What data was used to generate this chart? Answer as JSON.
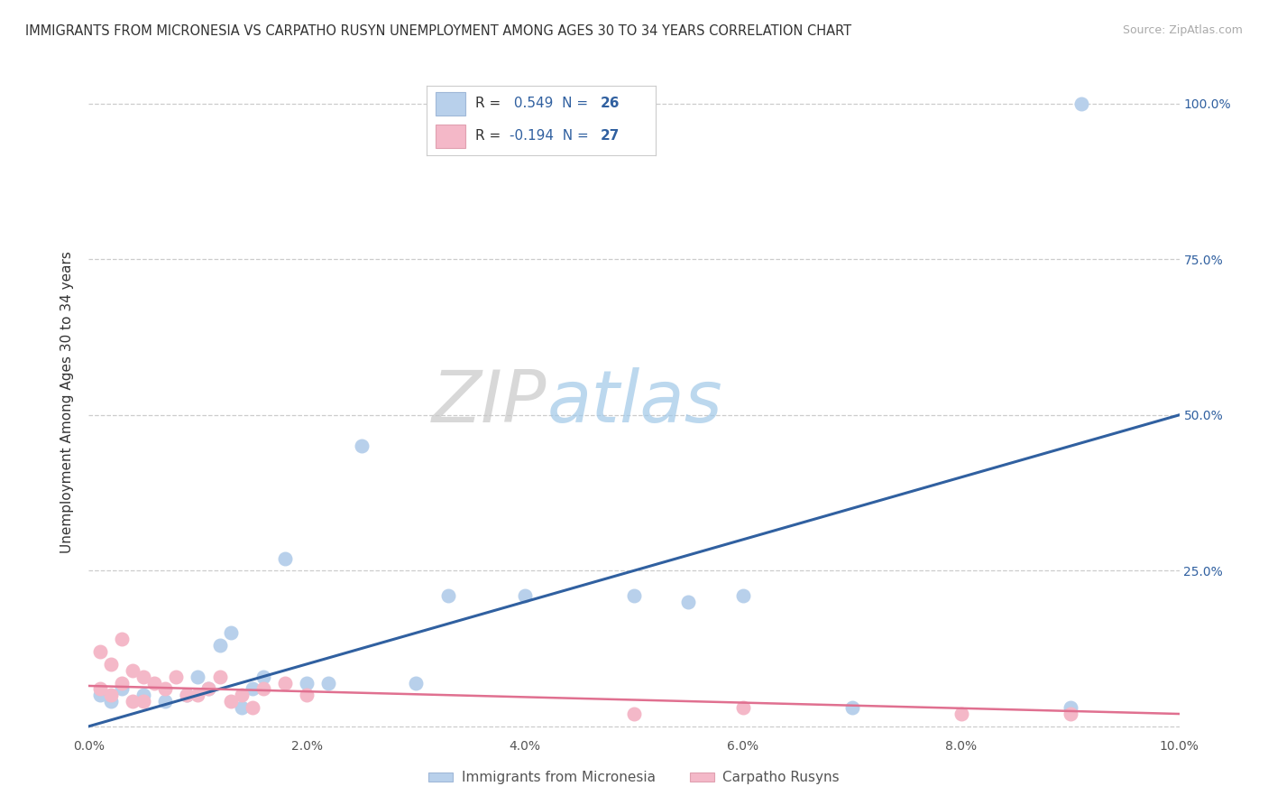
{
  "title": "IMMIGRANTS FROM MICRONESIA VS CARPATHO RUSYN UNEMPLOYMENT AMONG AGES 30 TO 34 YEARS CORRELATION CHART",
  "source": "Source: ZipAtlas.com",
  "ylabel": "Unemployment Among Ages 30 to 34 years",
  "xlim": [
    0,
    0.1
  ],
  "ylim": [
    -0.01,
    1.05
  ],
  "xticks": [
    0.0,
    0.02,
    0.04,
    0.06,
    0.08,
    0.1
  ],
  "yticks": [
    0.0,
    0.25,
    0.5,
    0.75,
    1.0
  ],
  "xtick_labels": [
    "0.0%",
    "2.0%",
    "4.0%",
    "6.0%",
    "8.0%",
    "10.0%"
  ],
  "ytick_labels_right": [
    "",
    "25.0%",
    "50.0%",
    "75.0%",
    "100.0%"
  ],
  "blue_R": "0.549",
  "blue_N": "26",
  "pink_R": "-0.194",
  "pink_N": "27",
  "blue_color": "#b8d0eb",
  "blue_line_color": "#3060a0",
  "pink_color": "#f4b8c8",
  "pink_line_color": "#e07090",
  "blue_scatter_x": [
    0.001,
    0.002,
    0.003,
    0.005,
    0.007,
    0.009,
    0.01,
    0.011,
    0.012,
    0.013,
    0.014,
    0.015,
    0.016,
    0.018,
    0.02,
    0.022,
    0.025,
    0.03,
    0.033,
    0.04,
    0.05,
    0.055,
    0.06,
    0.07,
    0.09,
    0.091
  ],
  "blue_scatter_y": [
    0.05,
    0.04,
    0.06,
    0.05,
    0.04,
    0.05,
    0.08,
    0.06,
    0.13,
    0.15,
    0.03,
    0.06,
    0.08,
    0.27,
    0.07,
    0.07,
    0.45,
    0.07,
    0.21,
    0.21,
    0.21,
    0.2,
    0.21,
    0.03,
    0.03,
    1.0
  ],
  "pink_scatter_x": [
    0.001,
    0.001,
    0.002,
    0.002,
    0.003,
    0.003,
    0.004,
    0.004,
    0.005,
    0.005,
    0.006,
    0.007,
    0.008,
    0.009,
    0.01,
    0.011,
    0.012,
    0.013,
    0.014,
    0.015,
    0.016,
    0.018,
    0.02,
    0.05,
    0.06,
    0.08,
    0.09
  ],
  "pink_scatter_y": [
    0.12,
    0.06,
    0.1,
    0.05,
    0.14,
    0.07,
    0.09,
    0.04,
    0.08,
    0.04,
    0.07,
    0.06,
    0.08,
    0.05,
    0.05,
    0.06,
    0.08,
    0.04,
    0.05,
    0.03,
    0.06,
    0.07,
    0.05,
    0.02,
    0.03,
    0.02,
    0.02
  ],
  "blue_trend_x": [
    0.0,
    0.1
  ],
  "blue_trend_y": [
    0.0,
    0.5
  ],
  "pink_trend_x": [
    0.0,
    0.1
  ],
  "pink_trend_y": [
    0.065,
    0.02
  ],
  "legend_label_blue": "Immigrants from Micronesia",
  "legend_label_pink": "Carpatho Rusyns",
  "background_color": "#ffffff",
  "grid_color": "#cccccc"
}
